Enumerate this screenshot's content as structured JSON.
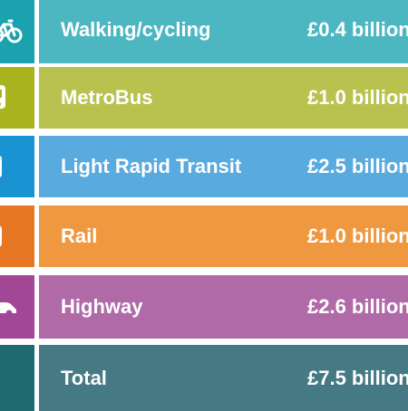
{
  "rows": [
    {
      "label": "Walking/cycling",
      "amount": "£0.4 billion",
      "icon": "bicycle-icon",
      "icon_color": "#1aa2ae",
      "bar_color": "#4cb6c1"
    },
    {
      "label": "MetroBus",
      "amount": "£1.0 billion",
      "icon": "bus-icon",
      "icon_color": "#a8b31e",
      "bar_color": "#b9c24f"
    },
    {
      "label": "Light Rapid Transit",
      "amount": "£2.5 billion",
      "icon": "tram-icon",
      "icon_color": "#1a93d2",
      "bar_color": "#58aadf"
    },
    {
      "label": "Rail",
      "amount": "£1.0 billion",
      "icon": "train-icon",
      "icon_color": "#e87724",
      "bar_color": "#ef9840"
    },
    {
      "label": "Highway",
      "amount": "£2.6 billion",
      "icon": "car-icon",
      "icon_color": "#a14795",
      "bar_color": "#b06aa8"
    },
    {
      "label": "Total",
      "amount": "£7.5 billion",
      "icon": "",
      "icon_color": "#1d6a70",
      "bar_color": "#457a84"
    }
  ]
}
